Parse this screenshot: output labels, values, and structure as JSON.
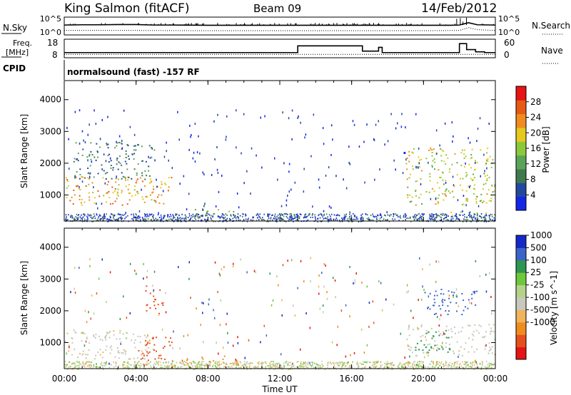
{
  "header": {
    "station": "King Salmon (fitACF)",
    "beam": "Beam 09",
    "date": "14/Feb/2012"
  },
  "noise_panel": {
    "left_label": "N.Sky",
    "left_ticks": [
      "10^5",
      "10^0"
    ],
    "right_ticks": [
      "10^5",
      "10^0"
    ],
    "right_label": "N.Search"
  },
  "freq_panel": {
    "left_label_1": "Freq.",
    "left_label_2": "[MHz]",
    "left_ticks": [
      "18",
      "8"
    ],
    "right_ticks": [
      "60",
      "0"
    ],
    "right_label": "Nave"
  },
  "cpid_panel": {
    "label": "CPID",
    "text": "normalsound (fast) -157 RF"
  },
  "x_axis": {
    "title": "Time UT",
    "ticks": [
      "00:00",
      "04:00",
      "08:00",
      "12:00",
      "16:00",
      "20:00",
      "00:00"
    ]
  },
  "colors": {
    "power": [
      "#1426e6",
      "#2448a0",
      "#3f7a4e",
      "#5aa45a",
      "#8cc83c",
      "#e6c81e",
      "#f08c1e",
      "#e65a14",
      "#e61414"
    ],
    "velocity": [
      "#e61414",
      "#e6501e",
      "#f08c1e",
      "#f0b45a",
      "#c8c8be",
      "#b4d28c",
      "#6ec83c",
      "#2d9650",
      "#3c64c8",
      "#1428c8"
    ]
  },
  "chart_data": [
    {
      "type": "line",
      "name": "noise",
      "x_unit": "hours UT",
      "series": [
        {
          "name": "N.Sky",
          "style": "solid",
          "x": [
            0,
            1,
            2,
            3,
            4,
            5,
            6,
            8,
            10,
            12,
            14,
            16,
            18,
            20,
            21.5,
            22,
            22.5,
            23,
            24
          ],
          "y_log10": [
            3.3,
            3.4,
            3.4,
            3.5,
            3.5,
            3.3,
            3.3,
            3.2,
            3.2,
            3.2,
            3.2,
            3.2,
            3.2,
            3.2,
            3.2,
            3.3,
            4.2,
            3.4,
            3.3
          ]
        },
        {
          "name": "N.Search",
          "style": "dotted",
          "x": [
            0,
            4,
            8,
            12,
            16,
            20,
            22,
            22.5,
            23,
            24
          ],
          "y_log10": [
            1.2,
            1.2,
            1.1,
            1.1,
            1.1,
            1.1,
            1.2,
            2.3,
            1.5,
            1.2
          ]
        }
      ]
    },
    {
      "type": "line",
      "name": "frequency",
      "x_unit": "hours UT",
      "series": [
        {
          "name": "Freq",
          "unit": "MHz",
          "style": "step",
          "x": [
            0,
            13.0,
            16.6,
            17.5,
            17.7,
            22.0,
            22.4,
            22.9,
            23.4,
            24
          ],
          "y": [
            10.5,
            15.0,
            11.5,
            14.0,
            10.5,
            16.5,
            12.5,
            11.0,
            10.5,
            10.5
          ]
        },
        {
          "name": "Nave",
          "style": "dotted",
          "x": [
            0,
            24
          ],
          "y": [
            8,
            8
          ]
        }
      ],
      "ylim_left": [
        8,
        18
      ],
      "ylim_right": [
        0,
        60
      ]
    },
    {
      "type": "heatmap",
      "name": "power",
      "xlabel": "Time UT",
      "ylabel": "Slant Range [km]",
      "xlim": [
        0,
        24
      ],
      "ylim": [
        180,
        4600
      ],
      "yticks": [
        1000,
        2000,
        3000,
        4000
      ],
      "colorbar": {
        "label": "Power [dB]",
        "ticks": [
          4,
          8,
          12,
          16,
          20,
          24,
          28
        ],
        "range": [
          0,
          32
        ]
      },
      "echo_regions": [
        {
          "t": [
            0.0,
            6.0
          ],
          "r": [
            700,
            1600
          ],
          "value": 22
        },
        {
          "t": [
            0.5,
            5.0
          ],
          "r": [
            1500,
            2700
          ],
          "value": 9
        },
        {
          "t": [
            6.5,
            9.7
          ],
          "r": [
            350,
            600
          ],
          "value": 12
        },
        {
          "t": [
            19.0,
            24.0
          ],
          "r": [
            700,
            2500
          ],
          "value": 18
        },
        {
          "t": [
            21.5,
            23.5
          ],
          "r": [
            200,
            500
          ],
          "value": 16
        }
      ]
    },
    {
      "type": "heatmap",
      "name": "velocity",
      "xlabel": "Time UT",
      "ylabel": "Slant Range [km]",
      "xlim": [
        0,
        24
      ],
      "ylim": [
        180,
        4600
      ],
      "yticks": [
        1000,
        2000,
        3000,
        4000
      ],
      "colorbar": {
        "label": "Velocity [m s^-1]",
        "ticks": [
          1000,
          500,
          100,
          25,
          -25,
          -100,
          -500,
          -1000
        ]
      },
      "echo_regions": [
        {
          "t": [
            0.0,
            5.0
          ],
          "r": [
            500,
            1400
          ],
          "value": 0
        },
        {
          "t": [
            4.0,
            6.0
          ],
          "r": [
            400,
            1200
          ],
          "value": -600
        },
        {
          "t": [
            4.5,
            5.5
          ],
          "r": [
            1900,
            2800
          ],
          "value": -800
        },
        {
          "t": [
            6.5,
            9.7
          ],
          "r": [
            300,
            600
          ],
          "value": -400
        },
        {
          "t": [
            20.0,
            23.0
          ],
          "r": [
            1900,
            2700
          ],
          "value": 700
        },
        {
          "t": [
            19.0,
            24.0
          ],
          "r": [
            600,
            1600
          ],
          "value": 0
        },
        {
          "t": [
            19.5,
            21.5
          ],
          "r": [
            700,
            1400
          ],
          "value": 150
        }
      ]
    }
  ]
}
